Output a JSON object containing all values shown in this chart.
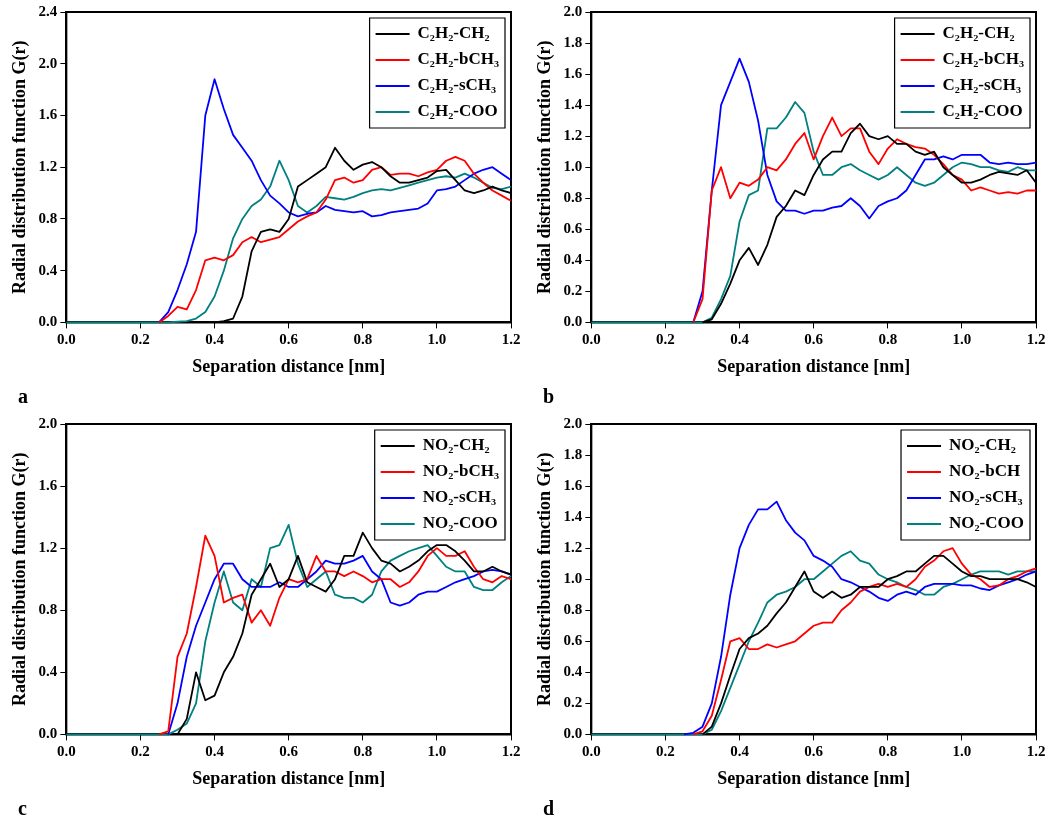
{
  "chart_data": [
    {
      "type": "line",
      "xlabel": "Separation distance [nm]",
      "ylabel": "Radial distribution function G(r)",
      "annotations": [
        "a"
      ],
      "legend": "top right",
      "grid": false,
      "marker": "none",
      "line_style": "solid",
      "xlim": [
        0,
        1.2
      ],
      "xticks": [
        {
          "value": 0,
          "label": "0.0"
        },
        {
          "value": 0.2,
          "label": "0.2"
        },
        {
          "value": 0.4,
          "label": "0.4"
        },
        {
          "value": 0.6,
          "label": "0.6"
        },
        {
          "value": 0.8,
          "label": "0.8"
        },
        {
          "value": 1,
          "label": "1.0"
        },
        {
          "value": 1.2,
          "label": "1.2"
        }
      ],
      "ylim": [
        0,
        2.4
      ],
      "yticks": [
        {
          "value": 0,
          "label": "0.0"
        },
        {
          "value": 0.4,
          "label": "0.4"
        },
        {
          "value": 0.8,
          "label": "0.8"
        },
        {
          "value": 1.2,
          "label": "1.2"
        },
        {
          "value": 1.6,
          "label": "1.6"
        },
        {
          "value": 2,
          "label": "2.0"
        },
        {
          "value": 2.4,
          "label": "2.4"
        }
      ],
      "x": [
        0,
        0.025,
        0.05,
        0.075,
        0.1,
        0.125,
        0.15,
        0.175,
        0.2,
        0.225,
        0.25,
        0.275,
        0.3,
        0.325,
        0.35,
        0.375,
        0.4,
        0.425,
        0.45,
        0.475,
        0.5,
        0.525,
        0.55,
        0.575,
        0.6,
        0.625,
        0.65,
        0.675,
        0.7,
        0.725,
        0.75,
        0.775,
        0.8,
        0.825,
        0.85,
        0.875,
        0.9,
        0.925,
        0.95,
        0.975,
        1,
        1.025,
        1.05,
        1.075,
        1.1,
        1.125,
        1.15,
        1.175,
        1.2
      ],
      "series": [
        {
          "name": "C₂H₂-CH₂",
          "color": "#000000",
          "values": [
            null,
            null,
            null,
            null,
            null,
            null,
            null,
            null,
            null,
            null,
            null,
            null,
            null,
            null,
            null,
            null,
            0,
            0.01,
            0.03,
            0.2,
            0.55,
            0.7,
            0.72,
            0.7,
            0.8,
            1.05,
            1.1,
            1.15,
            1.2,
            1.35,
            1.25,
            1.18,
            1.22,
            1.24,
            1.2,
            1.13,
            1.08,
            1.08,
            1.1,
            1.12,
            1.17,
            1.18,
            1.1,
            1.02,
            1.0,
            1.02,
            1.05,
            1.02,
            1.0
          ]
        },
        {
          "name": "C₂H₂-bCH₃",
          "color": "#ff0000",
          "values": [
            null,
            null,
            null,
            null,
            null,
            null,
            null,
            null,
            null,
            null,
            0,
            0.05,
            0.12,
            0.1,
            0.25,
            0.48,
            0.5,
            0.48,
            0.52,
            0.62,
            0.66,
            0.62,
            0.64,
            0.66,
            0.72,
            0.78,
            0.82,
            0.85,
            0.95,
            1.1,
            1.12,
            1.08,
            1.1,
            1.18,
            1.2,
            1.14,
            1.15,
            1.15,
            1.13,
            1.16,
            1.18,
            1.25,
            1.28,
            1.25,
            1.15,
            1.08,
            1.02,
            0.98,
            0.94
          ]
        },
        {
          "name": "C₂H₂-sCH₃",
          "color": "#0000ff",
          "values": [
            null,
            null,
            null,
            null,
            null,
            null,
            null,
            null,
            null,
            null,
            0,
            0.08,
            0.25,
            0.45,
            0.7,
            1.6,
            1.88,
            1.65,
            1.45,
            1.35,
            1.25,
            1.1,
            0.98,
            0.92,
            0.85,
            0.82,
            0.84,
            0.85,
            0.9,
            0.87,
            0.86,
            0.85,
            0.86,
            0.82,
            0.83,
            0.85,
            0.86,
            0.87,
            0.88,
            0.92,
            1.02,
            1.03,
            1.05,
            1.1,
            1.15,
            1.18,
            1.2,
            1.15,
            1.1
          ]
        },
        {
          "name": "C₂H₂-COO",
          "color": "#008080",
          "values": [
            0,
            0,
            0,
            0,
            0,
            0,
            0,
            0,
            0,
            0,
            0,
            0,
            0.005,
            0.01,
            0.03,
            0.08,
            0.2,
            0.4,
            0.65,
            0.8,
            0.9,
            0.95,
            1.05,
            1.25,
            1.1,
            0.9,
            0.85,
            0.9,
            0.97,
            0.96,
            0.95,
            0.97,
            1.0,
            1.02,
            1.03,
            1.02,
            1.04,
            1.06,
            1.08,
            1.1,
            1.12,
            1.13,
            1.12,
            1.15,
            1.12,
            1.08,
            1.04,
            1.03,
            1.05
          ]
        }
      ]
    },
    {
      "type": "line",
      "xlabel": "Separation distance [nm]",
      "ylabel": "Radial distribution function G(r)",
      "annotations": [
        "b"
      ],
      "legend": "top right",
      "grid": false,
      "marker": "none",
      "line_style": "solid",
      "xlim": [
        0,
        1.2
      ],
      "xticks": [
        {
          "value": 0,
          "label": "0.0"
        },
        {
          "value": 0.2,
          "label": "0.2"
        },
        {
          "value": 0.4,
          "label": "0.4"
        },
        {
          "value": 0.6,
          "label": "0.6"
        },
        {
          "value": 0.8,
          "label": "0.8"
        },
        {
          "value": 1,
          "label": "1.0"
        },
        {
          "value": 1.2,
          "label": "1.2"
        }
      ],
      "ylim": [
        0,
        2
      ],
      "yticks": [
        {
          "value": 0,
          "label": "0.0"
        },
        {
          "value": 0.2,
          "label": "0.2"
        },
        {
          "value": 0.4,
          "label": "0.4"
        },
        {
          "value": 0.6,
          "label": "0.6"
        },
        {
          "value": 0.8,
          "label": "0.8"
        },
        {
          "value": 1,
          "label": "1.0"
        },
        {
          "value": 1.2,
          "label": "1.2"
        },
        {
          "value": 1.4,
          "label": "1.4"
        },
        {
          "value": 1.6,
          "label": "1.6"
        },
        {
          "value": 1.8,
          "label": "1.8"
        },
        {
          "value": 2,
          "label": "2.0"
        }
      ],
      "x": [
        0,
        0.025,
        0.05,
        0.075,
        0.1,
        0.125,
        0.15,
        0.175,
        0.2,
        0.225,
        0.25,
        0.275,
        0.3,
        0.325,
        0.35,
        0.375,
        0.4,
        0.425,
        0.45,
        0.475,
        0.5,
        0.525,
        0.55,
        0.575,
        0.6,
        0.625,
        0.65,
        0.675,
        0.7,
        0.725,
        0.75,
        0.775,
        0.8,
        0.825,
        0.85,
        0.875,
        0.9,
        0.925,
        0.95,
        0.975,
        1,
        1.025,
        1.05,
        1.075,
        1.1,
        1.125,
        1.15,
        1.175,
        1.2
      ],
      "series": [
        {
          "name": "C₂H₂-CH₂",
          "color": "#000000",
          "values": [
            null,
            null,
            null,
            null,
            null,
            null,
            null,
            null,
            null,
            null,
            null,
            null,
            0,
            0.02,
            0.12,
            0.25,
            0.4,
            0.48,
            0.37,
            0.5,
            0.68,
            0.75,
            0.85,
            0.82,
            0.95,
            1.05,
            1.1,
            1.1,
            1.22,
            1.28,
            1.2,
            1.18,
            1.2,
            1.15,
            1.15,
            1.1,
            1.08,
            1.1,
            1.0,
            0.95,
            0.9,
            0.9,
            0.92,
            0.95,
            0.97,
            0.96,
            0.95,
            0.98,
            0.9
          ]
        },
        {
          "name": "C₂H₂-bCH₃",
          "color": "#ff0000",
          "values": [
            null,
            null,
            null,
            null,
            null,
            null,
            null,
            null,
            null,
            null,
            null,
            0,
            0.15,
            0.85,
            1.0,
            0.8,
            0.9,
            0.88,
            0.92,
            1.0,
            0.98,
            1.05,
            1.15,
            1.22,
            1.05,
            1.2,
            1.32,
            1.2,
            1.25,
            1.25,
            1.1,
            1.02,
            1.12,
            1.18,
            1.15,
            1.13,
            1.12,
            1.08,
            1.02,
            0.95,
            0.92,
            0.85,
            0.87,
            0.85,
            0.83,
            0.84,
            0.83,
            0.85,
            0.85
          ]
        },
        {
          "name": "C₂H₂-sCH₃",
          "color": "#0000ff",
          "values": [
            null,
            null,
            null,
            null,
            null,
            null,
            null,
            null,
            null,
            null,
            null,
            0,
            0.2,
            0.85,
            1.4,
            1.55,
            1.7,
            1.55,
            1.3,
            0.95,
            0.78,
            0.72,
            0.72,
            0.7,
            0.72,
            0.72,
            0.74,
            0.75,
            0.8,
            0.75,
            0.67,
            0.75,
            0.78,
            0.8,
            0.85,
            0.95,
            1.05,
            1.05,
            1.07,
            1.05,
            1.08,
            1.08,
            1.08,
            1.03,
            1.02,
            1.03,
            1.02,
            1.02,
            1.03
          ]
        },
        {
          "name": "C₂H₂-COO",
          "color": "#008080",
          "values": [
            0,
            0,
            0,
            0,
            0,
            0,
            0,
            0,
            0,
            0,
            0,
            0,
            0,
            0.03,
            0.15,
            0.3,
            0.65,
            0.82,
            0.85,
            1.25,
            1.25,
            1.32,
            1.42,
            1.35,
            1.1,
            0.95,
            0.95,
            1.0,
            1.02,
            0.98,
            0.95,
            0.92,
            0.95,
            1.0,
            0.95,
            0.9,
            0.88,
            0.9,
            0.95,
            1.0,
            1.03,
            1.02,
            1.0,
            1.0,
            0.98,
            0.97,
            1.0,
            0.98,
            0.98
          ]
        }
      ]
    },
    {
      "type": "line",
      "xlabel": "Separation distance [nm]",
      "ylabel": "Radial distribution function G(r)",
      "annotations": [
        "c"
      ],
      "legend": "top right",
      "grid": false,
      "marker": "none",
      "line_style": "solid",
      "xlim": [
        0,
        1.2
      ],
      "xticks": [
        {
          "value": 0,
          "label": "0.0"
        },
        {
          "value": 0.2,
          "label": "0.2"
        },
        {
          "value": 0.4,
          "label": "0.4"
        },
        {
          "value": 0.6,
          "label": "0.6"
        },
        {
          "value": 0.8,
          "label": "0.8"
        },
        {
          "value": 1,
          "label": "1.0"
        },
        {
          "value": 1.2,
          "label": "1.2"
        }
      ],
      "ylim": [
        0,
        2
      ],
      "yticks": [
        {
          "value": 0,
          "label": "0.0"
        },
        {
          "value": 0.4,
          "label": "0.4"
        },
        {
          "value": 0.8,
          "label": "0.8"
        },
        {
          "value": 1.2,
          "label": "1.2"
        },
        {
          "value": 1.6,
          "label": "1.6"
        },
        {
          "value": 2,
          "label": "2.0"
        }
      ],
      "x": [
        0,
        0.025,
        0.05,
        0.075,
        0.1,
        0.125,
        0.15,
        0.175,
        0.2,
        0.225,
        0.25,
        0.275,
        0.3,
        0.325,
        0.35,
        0.375,
        0.4,
        0.425,
        0.45,
        0.475,
        0.5,
        0.525,
        0.55,
        0.575,
        0.6,
        0.625,
        0.65,
        0.675,
        0.7,
        0.725,
        0.75,
        0.775,
        0.8,
        0.825,
        0.85,
        0.875,
        0.9,
        0.925,
        0.95,
        0.975,
        1,
        1.025,
        1.05,
        1.075,
        1.1,
        1.125,
        1.15,
        1.175,
        1.2
      ],
      "series": [
        {
          "name": "NO₂-CH₂",
          "color": "#000000",
          "values": [
            null,
            null,
            null,
            null,
            null,
            null,
            null,
            null,
            null,
            null,
            null,
            null,
            0,
            0.1,
            0.4,
            0.22,
            0.25,
            0.4,
            0.5,
            0.65,
            0.9,
            1.0,
            1.1,
            0.95,
            1.0,
            1.15,
            0.98,
            0.95,
            0.92,
            1.0,
            1.15,
            1.15,
            1.3,
            1.2,
            1.12,
            1.1,
            1.05,
            1.08,
            1.12,
            1.18,
            1.22,
            1.22,
            1.18,
            1.12,
            1.05,
            1.05,
            1.08,
            1.05,
            1.03
          ]
        },
        {
          "name": "NO₂-bCH₃",
          "color": "#ff0000",
          "values": [
            null,
            null,
            null,
            null,
            null,
            null,
            null,
            null,
            null,
            null,
            0,
            0.02,
            0.5,
            0.65,
            0.95,
            1.28,
            1.15,
            0.85,
            0.88,
            0.9,
            0.72,
            0.8,
            0.7,
            0.88,
            1.0,
            0.98,
            1.0,
            1.15,
            1.05,
            1.05,
            1.02,
            1.05,
            1.02,
            0.98,
            1.0,
            1.0,
            0.95,
            0.98,
            1.05,
            1.15,
            1.2,
            1.15,
            1.15,
            1.18,
            1.08,
            1.0,
            0.98,
            1.02,
            1.0
          ]
        },
        {
          "name": "NO₂-sCH₃",
          "color": "#0000ff",
          "values": [
            null,
            null,
            null,
            null,
            null,
            null,
            null,
            null,
            null,
            null,
            null,
            0,
            0.2,
            0.5,
            0.7,
            0.85,
            1.0,
            1.1,
            1.1,
            1.0,
            0.95,
            0.95,
            0.95,
            0.98,
            0.95,
            0.95,
            1.0,
            1.05,
            1.12,
            1.1,
            1.1,
            1.12,
            1.15,
            1.05,
            1.0,
            0.85,
            0.83,
            0.85,
            0.9,
            0.92,
            0.92,
            0.95,
            0.98,
            1.0,
            1.02,
            1.05,
            1.06,
            1.05,
            1.03
          ]
        },
        {
          "name": "NO₂-COO",
          "color": "#008080",
          "values": [
            0,
            0,
            0,
            0,
            0,
            0,
            0,
            0,
            0,
            0,
            0,
            0,
            0.03,
            0.07,
            0.2,
            0.6,
            0.85,
            1.05,
            0.85,
            0.8,
            1.0,
            0.95,
            1.2,
            1.22,
            1.35,
            1.1,
            0.95,
            1.0,
            1.05,
            0.9,
            0.88,
            0.88,
            0.85,
            0.9,
            1.05,
            1.12,
            1.15,
            1.18,
            1.2,
            1.22,
            1.15,
            1.08,
            1.05,
            1.05,
            0.95,
            0.93,
            0.93,
            0.98,
            1.02
          ]
        }
      ]
    },
    {
      "type": "line",
      "xlabel": "Separation distance [nm]",
      "ylabel": "Radial distribution function G(r)",
      "annotations": [
        "d"
      ],
      "legend": "top right",
      "grid": false,
      "marker": "none",
      "line_style": "solid",
      "xlim": [
        0,
        1.2
      ],
      "xticks": [
        {
          "value": 0,
          "label": "0.0"
        },
        {
          "value": 0.2,
          "label": "0.2"
        },
        {
          "value": 0.4,
          "label": "0.4"
        },
        {
          "value": 0.6,
          "label": "0.6"
        },
        {
          "value": 0.8,
          "label": "0.8"
        },
        {
          "value": 1,
          "label": "1.0"
        },
        {
          "value": 1.2,
          "label": "1.2"
        }
      ],
      "ylim": [
        0,
        2
      ],
      "yticks": [
        {
          "value": 0,
          "label": "0.0"
        },
        {
          "value": 0.2,
          "label": "0.2"
        },
        {
          "value": 0.4,
          "label": "0.4"
        },
        {
          "value": 0.6,
          "label": "0.6"
        },
        {
          "value": 0.8,
          "label": "0.8"
        },
        {
          "value": 1,
          "label": "1.0"
        },
        {
          "value": 1.2,
          "label": "1.2"
        },
        {
          "value": 1.4,
          "label": "1.4"
        },
        {
          "value": 1.6,
          "label": "1.6"
        },
        {
          "value": 1.8,
          "label": "1.8"
        },
        {
          "value": 2,
          "label": "2.0"
        }
      ],
      "x": [
        0,
        0.025,
        0.05,
        0.075,
        0.1,
        0.125,
        0.15,
        0.175,
        0.2,
        0.225,
        0.25,
        0.275,
        0.3,
        0.325,
        0.35,
        0.375,
        0.4,
        0.425,
        0.45,
        0.475,
        0.5,
        0.525,
        0.55,
        0.575,
        0.6,
        0.625,
        0.65,
        0.675,
        0.7,
        0.725,
        0.75,
        0.775,
        0.8,
        0.825,
        0.85,
        0.875,
        0.9,
        0.925,
        0.95,
        0.975,
        1,
        1.025,
        1.05,
        1.075,
        1.1,
        1.125,
        1.15,
        1.175,
        1.2
      ],
      "series": [
        {
          "name": "NO₂-CH₂",
          "color": "#000000",
          "values": [
            null,
            null,
            null,
            null,
            null,
            null,
            null,
            null,
            null,
            null,
            null,
            null,
            0,
            0.05,
            0.2,
            0.38,
            0.55,
            0.62,
            0.65,
            0.7,
            0.78,
            0.85,
            0.95,
            1.05,
            0.92,
            0.88,
            0.92,
            0.88,
            0.9,
            0.95,
            0.95,
            0.95,
            1.0,
            1.02,
            1.05,
            1.05,
            1.1,
            1.15,
            1.15,
            1.1,
            1.05,
            1.02,
            1.02,
            1.0,
            1.0,
            1.0,
            1.0,
            0.98,
            0.95
          ]
        },
        {
          "name": "NO₂-bCH",
          "color": "#ff0000",
          "values": [
            null,
            null,
            null,
            null,
            null,
            null,
            null,
            null,
            null,
            null,
            null,
            0,
            0.02,
            0.12,
            0.35,
            0.6,
            0.62,
            0.55,
            0.55,
            0.58,
            0.56,
            0.58,
            0.6,
            0.65,
            0.7,
            0.72,
            0.72,
            0.8,
            0.85,
            0.92,
            0.95,
            0.97,
            0.95,
            0.97,
            0.95,
            1.0,
            1.08,
            1.12,
            1.18,
            1.2,
            1.1,
            1.03,
            1.0,
            0.95,
            0.96,
            1.0,
            1.02,
            1.05,
            1.07
          ]
        },
        {
          "name": "NO₂-sCH₃",
          "color": "#0000ff",
          "values": [
            null,
            null,
            null,
            null,
            null,
            null,
            null,
            null,
            null,
            null,
            0,
            0.01,
            0.05,
            0.2,
            0.5,
            0.9,
            1.2,
            1.35,
            1.45,
            1.45,
            1.5,
            1.38,
            1.3,
            1.25,
            1.15,
            1.12,
            1.08,
            1.0,
            0.98,
            0.95,
            0.92,
            0.88,
            0.86,
            0.9,
            0.92,
            0.9,
            0.95,
            0.97,
            0.97,
            0.97,
            0.96,
            0.96,
            0.94,
            0.93,
            0.96,
            0.98,
            1.0,
            1.03,
            1.05
          ]
        },
        {
          "name": "NO₂-COO",
          "color": "#008080",
          "values": [
            0,
            0,
            0,
            0,
            0,
            0,
            0,
            0,
            0,
            0,
            0,
            0,
            0,
            0.03,
            0.15,
            0.3,
            0.45,
            0.6,
            0.72,
            0.85,
            0.9,
            0.92,
            0.95,
            1.0,
            1.0,
            1.05,
            1.1,
            1.15,
            1.18,
            1.12,
            1.1,
            1.03,
            1.0,
            0.98,
            0.95,
            0.93,
            0.9,
            0.9,
            0.95,
            0.97,
            1.0,
            1.03,
            1.05,
            1.05,
            1.05,
            1.03,
            1.05,
            1.05,
            1.05
          ]
        }
      ]
    }
  ]
}
